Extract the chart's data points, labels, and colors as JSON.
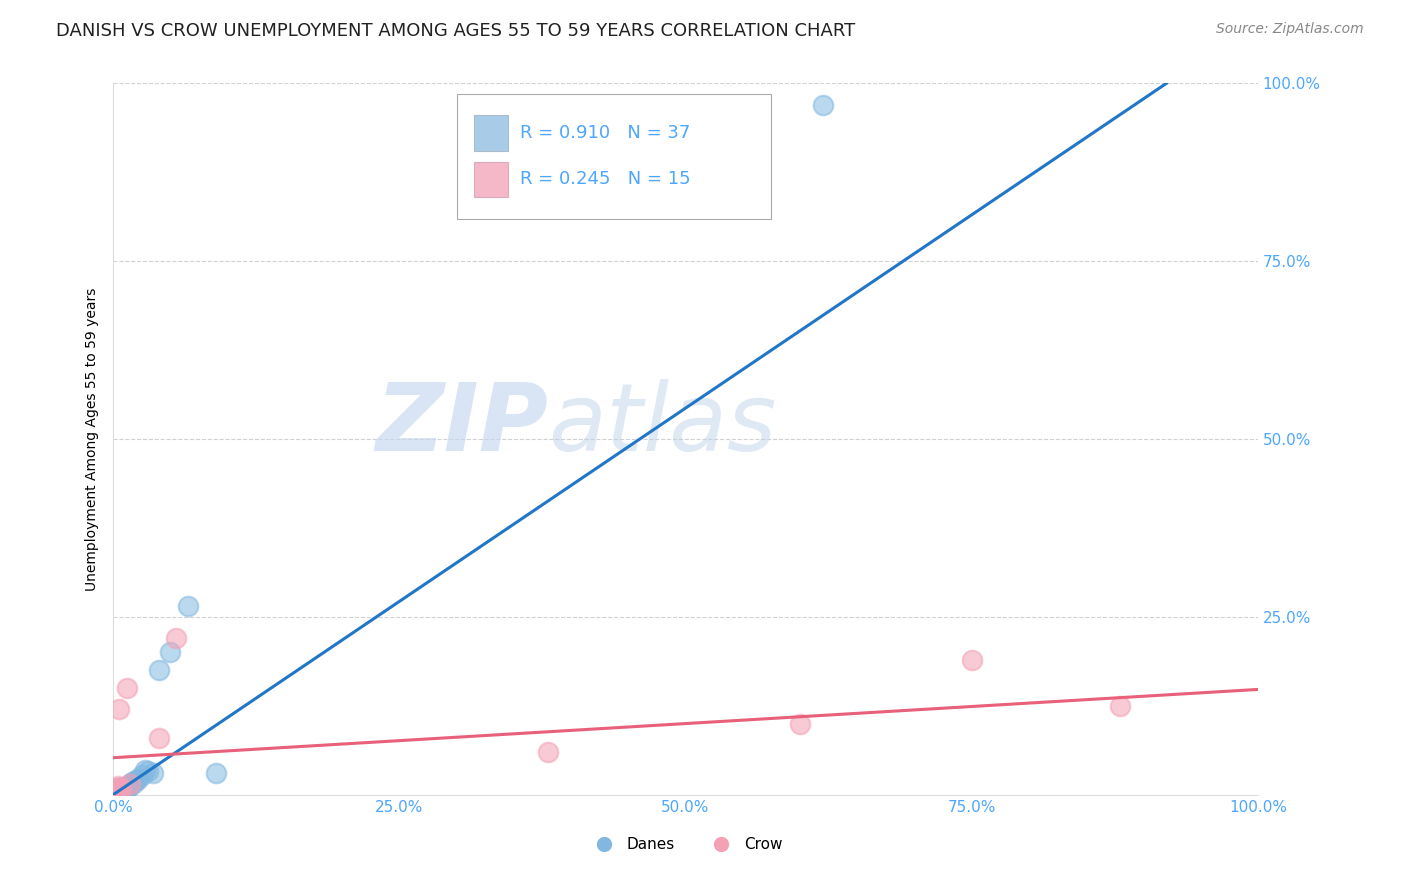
{
  "title": "DANISH VS CROW UNEMPLOYMENT AMONG AGES 55 TO 59 YEARS CORRELATION CHART",
  "source": "Source: ZipAtlas.com",
  "ylabel_label": "Unemployment Among Ages 55 to 59 years",
  "xlim": [
    0.0,
    1.0
  ],
  "ylim": [
    0.0,
    1.0
  ],
  "xtick_labels": [
    "0.0%",
    "25.0%",
    "50.0%",
    "75.0%",
    "100.0%"
  ],
  "xtick_vals": [
    0.0,
    0.25,
    0.5,
    0.75,
    1.0
  ],
  "ytick_labels": [
    "100.0%",
    "75.0%",
    "50.0%",
    "25.0%"
  ],
  "ytick_vals": [
    1.0,
    0.75,
    0.5,
    0.25
  ],
  "danes_color": "#82b8e0",
  "crow_color": "#f4a0b5",
  "danes_line_color": "#2176c7",
  "crow_line_color": "#e8607a",
  "legend_sq_danes": "#a8cce8",
  "legend_sq_crow": "#f4b8c8",
  "danes_R": "0.910",
  "danes_N": "37",
  "crow_R": "0.245",
  "crow_N": "15",
  "legend_label_danes": "Danes",
  "legend_label_crow": "Crow",
  "watermark_zip": "ZIP",
  "watermark_atlas": "atlas",
  "background_color": "#ffffff",
  "grid_color": "#cccccc",
  "danes_x": [
    0.001,
    0.002,
    0.002,
    0.003,
    0.003,
    0.003,
    0.004,
    0.004,
    0.005,
    0.005,
    0.006,
    0.006,
    0.007,
    0.007,
    0.008,
    0.008,
    0.009,
    0.01,
    0.01,
    0.011,
    0.012,
    0.013,
    0.014,
    0.015,
    0.016,
    0.018,
    0.02,
    0.022,
    0.025,
    0.028,
    0.03,
    0.035,
    0.04,
    0.05,
    0.065,
    0.09,
    0.62
  ],
  "danes_y": [
    0.005,
    0.004,
    0.006,
    0.004,
    0.006,
    0.008,
    0.005,
    0.007,
    0.004,
    0.007,
    0.006,
    0.009,
    0.008,
    0.01,
    0.007,
    0.009,
    0.008,
    0.009,
    0.011,
    0.01,
    0.009,
    0.012,
    0.011,
    0.015,
    0.018,
    0.016,
    0.02,
    0.022,
    0.028,
    0.035,
    0.033,
    0.03,
    0.175,
    0.2,
    0.265,
    0.03,
    0.97
  ],
  "crow_x": [
    0.001,
    0.002,
    0.003,
    0.004,
    0.005,
    0.006,
    0.007,
    0.012,
    0.015,
    0.04,
    0.055,
    0.38,
    0.6,
    0.75,
    0.88
  ],
  "crow_y": [
    0.008,
    0.007,
    0.01,
    0.012,
    0.12,
    0.008,
    0.01,
    0.15,
    0.015,
    0.08,
    0.22,
    0.06,
    0.1,
    0.19,
    0.125
  ],
  "danes_trendline_x": [
    0.0,
    0.92
  ],
  "danes_trendline_y": [
    0.0,
    1.0
  ],
  "crow_trendline_x": [
    0.0,
    1.0
  ],
  "crow_trendline_y": [
    0.052,
    0.148
  ],
  "marker_size": 200,
  "marker_linewidth": 1.5,
  "title_color": "#222222",
  "axis_tick_color": "#4da6ff",
  "title_fontsize": 13,
  "source_fontsize": 10,
  "legend_text_color": "#4da6ff",
  "legend_fontsize": 13
}
